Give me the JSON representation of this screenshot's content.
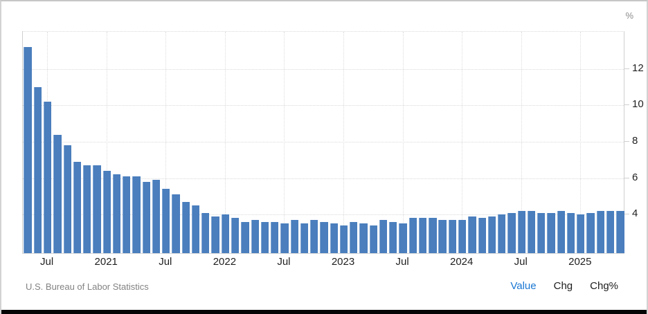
{
  "unit_label": "%",
  "source_label": "U.S. Bureau of Labor Statistics",
  "legend": {
    "value_label": "Value",
    "chg_label": "Chg",
    "chgpct_label": "Chg%",
    "active_link": "Value",
    "active_color": "#1976d2"
  },
  "colors": {
    "bar": "#4a7ebd",
    "bar_edge": "#7fa3cf",
    "gridline": "#d9d9d9",
    "axis_line": "#cfcfcf",
    "window_bottom_edge": "#050505"
  },
  "chart_data": {
    "type": "bar",
    "unit": "%",
    "categories": [
      "May 2020",
      "Jun 2020",
      "Jul 2020",
      "Aug 2020",
      "Sep 2020",
      "Oct 2020",
      "Nov 2020",
      "Dec 2020",
      "Jan 2021",
      "Feb 2021",
      "Mar 2021",
      "Apr 2021",
      "May 2021",
      "Jun 2021",
      "Jul 2021",
      "Aug 2021",
      "Sep 2021",
      "Oct 2021",
      "Nov 2021",
      "Dec 2021",
      "Jan 2022",
      "Feb 2022",
      "Mar 2022",
      "Apr 2022",
      "May 2022",
      "Jun 2022",
      "Jul 2022",
      "Aug 2022",
      "Sep 2022",
      "Oct 2022",
      "Nov 2022",
      "Dec 2022",
      "Jan 2023",
      "Feb 2023",
      "Mar 2023",
      "Apr 2023",
      "May 2023",
      "Jun 2023",
      "Jul 2023",
      "Aug 2023",
      "Sep 2023",
      "Oct 2023",
      "Nov 2023",
      "Dec 2023",
      "Jan 2024",
      "Feb 2024",
      "Mar 2024",
      "Apr 2024",
      "May 2024",
      "Jun 2024",
      "Jul 2024",
      "Aug 2024",
      "Sep 2024",
      "Oct 2024",
      "Nov 2024",
      "Dec 2024",
      "Jan 2025",
      "Feb 2025",
      "Mar 2025",
      "Apr 2025",
      "May 2025"
    ],
    "values": [
      13.2,
      11.0,
      10.2,
      8.4,
      7.8,
      6.9,
      6.7,
      6.7,
      6.4,
      6.2,
      6.1,
      6.1,
      5.8,
      5.9,
      5.4,
      5.1,
      4.7,
      4.5,
      4.1,
      3.9,
      4.0,
      3.8,
      3.6,
      3.7,
      3.6,
      3.6,
      3.5,
      3.7,
      3.5,
      3.7,
      3.6,
      3.5,
      3.4,
      3.6,
      3.5,
      3.4,
      3.7,
      3.6,
      3.5,
      3.8,
      3.8,
      3.8,
      3.7,
      3.7,
      3.7,
      3.9,
      3.8,
      3.9,
      4.0,
      4.1,
      4.2,
      4.2,
      4.1,
      4.1,
      4.2,
      4.1,
      4.0,
      4.1,
      4.2,
      4.2,
      4.2
    ],
    "x_ticks": [
      {
        "index": 2,
        "label": "Jul"
      },
      {
        "index": 8,
        "label": "2021"
      },
      {
        "index": 14,
        "label": "Jul"
      },
      {
        "index": 20,
        "label": "2022"
      },
      {
        "index": 26,
        "label": "Jul"
      },
      {
        "index": 32,
        "label": "2023"
      },
      {
        "index": 38,
        "label": "Jul"
      },
      {
        "index": 44,
        "label": "2024"
      },
      {
        "index": 50,
        "label": "Jul"
      },
      {
        "index": 56,
        "label": "2025"
      }
    ],
    "y_ticks": [
      4,
      6,
      8,
      10,
      12
    ],
    "ylim": [
      1.8,
      14.05
    ],
    "ylabel": "%",
    "grid": true,
    "legend_position": "none",
    "title": ""
  }
}
